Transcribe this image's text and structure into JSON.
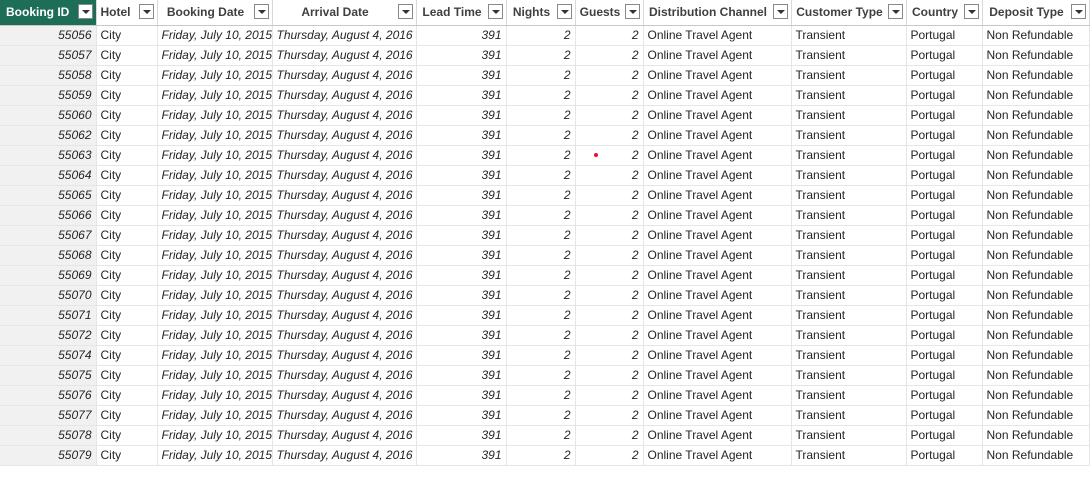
{
  "columns": [
    {
      "key": "id",
      "label": "Booking ID"
    },
    {
      "key": "hotel",
      "label": "Hotel"
    },
    {
      "key": "booking_date",
      "label": "Booking Date"
    },
    {
      "key": "arrival_date",
      "label": "Arrival Date"
    },
    {
      "key": "lead_time",
      "label": "Lead Time"
    },
    {
      "key": "nights",
      "label": "Nights"
    },
    {
      "key": "guests",
      "label": "Guests"
    },
    {
      "key": "channel",
      "label": "Distribution Channel"
    },
    {
      "key": "customer_type",
      "label": "Customer Type"
    },
    {
      "key": "country",
      "label": "Country"
    },
    {
      "key": "deposit_type",
      "label": "Deposit Type"
    }
  ],
  "rows": [
    {
      "id": "55056",
      "hotel": "City",
      "booking_date": "Friday, July 10, 2015",
      "arrival_date": "Thursday, August 4, 2016",
      "lead_time": "391",
      "nights": "2",
      "guests": "2",
      "channel": "Online Travel Agent",
      "customer_type": "Transient",
      "country": "Portugal",
      "deposit_type": "Non Refundable"
    },
    {
      "id": "55057",
      "hotel": "City",
      "booking_date": "Friday, July 10, 2015",
      "arrival_date": "Thursday, August 4, 2016",
      "lead_time": "391",
      "nights": "2",
      "guests": "2",
      "channel": "Online Travel Agent",
      "customer_type": "Transient",
      "country": "Portugal",
      "deposit_type": "Non Refundable"
    },
    {
      "id": "55058",
      "hotel": "City",
      "booking_date": "Friday, July 10, 2015",
      "arrival_date": "Thursday, August 4, 2016",
      "lead_time": "391",
      "nights": "2",
      "guests": "2",
      "channel": "Online Travel Agent",
      "customer_type": "Transient",
      "country": "Portugal",
      "deposit_type": "Non Refundable"
    },
    {
      "id": "55059",
      "hotel": "City",
      "booking_date": "Friday, July 10, 2015",
      "arrival_date": "Thursday, August 4, 2016",
      "lead_time": "391",
      "nights": "2",
      "guests": "2",
      "channel": "Online Travel Agent",
      "customer_type": "Transient",
      "country": "Portugal",
      "deposit_type": "Non Refundable"
    },
    {
      "id": "55060",
      "hotel": "City",
      "booking_date": "Friday, July 10, 2015",
      "arrival_date": "Thursday, August 4, 2016",
      "lead_time": "391",
      "nights": "2",
      "guests": "2",
      "channel": "Online Travel Agent",
      "customer_type": "Transient",
      "country": "Portugal",
      "deposit_type": "Non Refundable"
    },
    {
      "id": "55062",
      "hotel": "City",
      "booking_date": "Friday, July 10, 2015",
      "arrival_date": "Thursday, August 4, 2016",
      "lead_time": "391",
      "nights": "2",
      "guests": "2",
      "channel": "Online Travel Agent",
      "customer_type": "Transient",
      "country": "Portugal",
      "deposit_type": "Non Refundable"
    },
    {
      "id": "55063",
      "hotel": "City",
      "booking_date": "Friday, July 10, 2015",
      "arrival_date": "Thursday, August 4, 2016",
      "lead_time": "391",
      "nights": "2",
      "guests": "2",
      "channel": "Online Travel Agent",
      "customer_type": "Transient",
      "country": "Portugal",
      "deposit_type": "Non Refundable"
    },
    {
      "id": "55064",
      "hotel": "City",
      "booking_date": "Friday, July 10, 2015",
      "arrival_date": "Thursday, August 4, 2016",
      "lead_time": "391",
      "nights": "2",
      "guests": "2",
      "channel": "Online Travel Agent",
      "customer_type": "Transient",
      "country": "Portugal",
      "deposit_type": "Non Refundable"
    },
    {
      "id": "55065",
      "hotel": "City",
      "booking_date": "Friday, July 10, 2015",
      "arrival_date": "Thursday, August 4, 2016",
      "lead_time": "391",
      "nights": "2",
      "guests": "2",
      "channel": "Online Travel Agent",
      "customer_type": "Transient",
      "country": "Portugal",
      "deposit_type": "Non Refundable"
    },
    {
      "id": "55066",
      "hotel": "City",
      "booking_date": "Friday, July 10, 2015",
      "arrival_date": "Thursday, August 4, 2016",
      "lead_time": "391",
      "nights": "2",
      "guests": "2",
      "channel": "Online Travel Agent",
      "customer_type": "Transient",
      "country": "Portugal",
      "deposit_type": "Non Refundable"
    },
    {
      "id": "55067",
      "hotel": "City",
      "booking_date": "Friday, July 10, 2015",
      "arrival_date": "Thursday, August 4, 2016",
      "lead_time": "391",
      "nights": "2",
      "guests": "2",
      "channel": "Online Travel Agent",
      "customer_type": "Transient",
      "country": "Portugal",
      "deposit_type": "Non Refundable"
    },
    {
      "id": "55068",
      "hotel": "City",
      "booking_date": "Friday, July 10, 2015",
      "arrival_date": "Thursday, August 4, 2016",
      "lead_time": "391",
      "nights": "2",
      "guests": "2",
      "channel": "Online Travel Agent",
      "customer_type": "Transient",
      "country": "Portugal",
      "deposit_type": "Non Refundable"
    },
    {
      "id": "55069",
      "hotel": "City",
      "booking_date": "Friday, July 10, 2015",
      "arrival_date": "Thursday, August 4, 2016",
      "lead_time": "391",
      "nights": "2",
      "guests": "2",
      "channel": "Online Travel Agent",
      "customer_type": "Transient",
      "country": "Portugal",
      "deposit_type": "Non Refundable"
    },
    {
      "id": "55070",
      "hotel": "City",
      "booking_date": "Friday, July 10, 2015",
      "arrival_date": "Thursday, August 4, 2016",
      "lead_time": "391",
      "nights": "2",
      "guests": "2",
      "channel": "Online Travel Agent",
      "customer_type": "Transient",
      "country": "Portugal",
      "deposit_type": "Non Refundable"
    },
    {
      "id": "55071",
      "hotel": "City",
      "booking_date": "Friday, July 10, 2015",
      "arrival_date": "Thursday, August 4, 2016",
      "lead_time": "391",
      "nights": "2",
      "guests": "2",
      "channel": "Online Travel Agent",
      "customer_type": "Transient",
      "country": "Portugal",
      "deposit_type": "Non Refundable"
    },
    {
      "id": "55072",
      "hotel": "City",
      "booking_date": "Friday, July 10, 2015",
      "arrival_date": "Thursday, August 4, 2016",
      "lead_time": "391",
      "nights": "2",
      "guests": "2",
      "channel": "Online Travel Agent",
      "customer_type": "Transient",
      "country": "Portugal",
      "deposit_type": "Non Refundable"
    },
    {
      "id": "55074",
      "hotel": "City",
      "booking_date": "Friday, July 10, 2015",
      "arrival_date": "Thursday, August 4, 2016",
      "lead_time": "391",
      "nights": "2",
      "guests": "2",
      "channel": "Online Travel Agent",
      "customer_type": "Transient",
      "country": "Portugal",
      "deposit_type": "Non Refundable"
    },
    {
      "id": "55075",
      "hotel": "City",
      "booking_date": "Friday, July 10, 2015",
      "arrival_date": "Thursday, August 4, 2016",
      "lead_time": "391",
      "nights": "2",
      "guests": "2",
      "channel": "Online Travel Agent",
      "customer_type": "Transient",
      "country": "Portugal",
      "deposit_type": "Non Refundable"
    },
    {
      "id": "55076",
      "hotel": "City",
      "booking_date": "Friday, July 10, 2015",
      "arrival_date": "Thursday, August 4, 2016",
      "lead_time": "391",
      "nights": "2",
      "guests": "2",
      "channel": "Online Travel Agent",
      "customer_type": "Transient",
      "country": "Portugal",
      "deposit_type": "Non Refundable"
    },
    {
      "id": "55077",
      "hotel": "City",
      "booking_date": "Friday, July 10, 2015",
      "arrival_date": "Thursday, August 4, 2016",
      "lead_time": "391",
      "nights": "2",
      "guests": "2",
      "channel": "Online Travel Agent",
      "customer_type": "Transient",
      "country": "Portugal",
      "deposit_type": "Non Refundable"
    },
    {
      "id": "55078",
      "hotel": "City",
      "booking_date": "Friday, July 10, 2015",
      "arrival_date": "Thursday, August 4, 2016",
      "lead_time": "391",
      "nights": "2",
      "guests": "2",
      "channel": "Online Travel Agent",
      "customer_type": "Transient",
      "country": "Portugal",
      "deposit_type": "Non Refundable"
    },
    {
      "id": "55079",
      "hotel": "City",
      "booking_date": "Friday, July 10, 2015",
      "arrival_date": "Thursday, August 4, 2016",
      "lead_time": "391",
      "nights": "2",
      "guests": "2",
      "channel": "Online Travel Agent",
      "customer_type": "Transient",
      "country": "Portugal",
      "deposit_type": "Non Refundable"
    }
  ],
  "colors": {
    "selected_header": "#1e6e57",
    "row_header_bg": "#f1f1f1",
    "marker": "#e8112d"
  },
  "icons": {
    "column_filter": "dropdown-arrow-icon",
    "marker": "red-dot-marker"
  }
}
